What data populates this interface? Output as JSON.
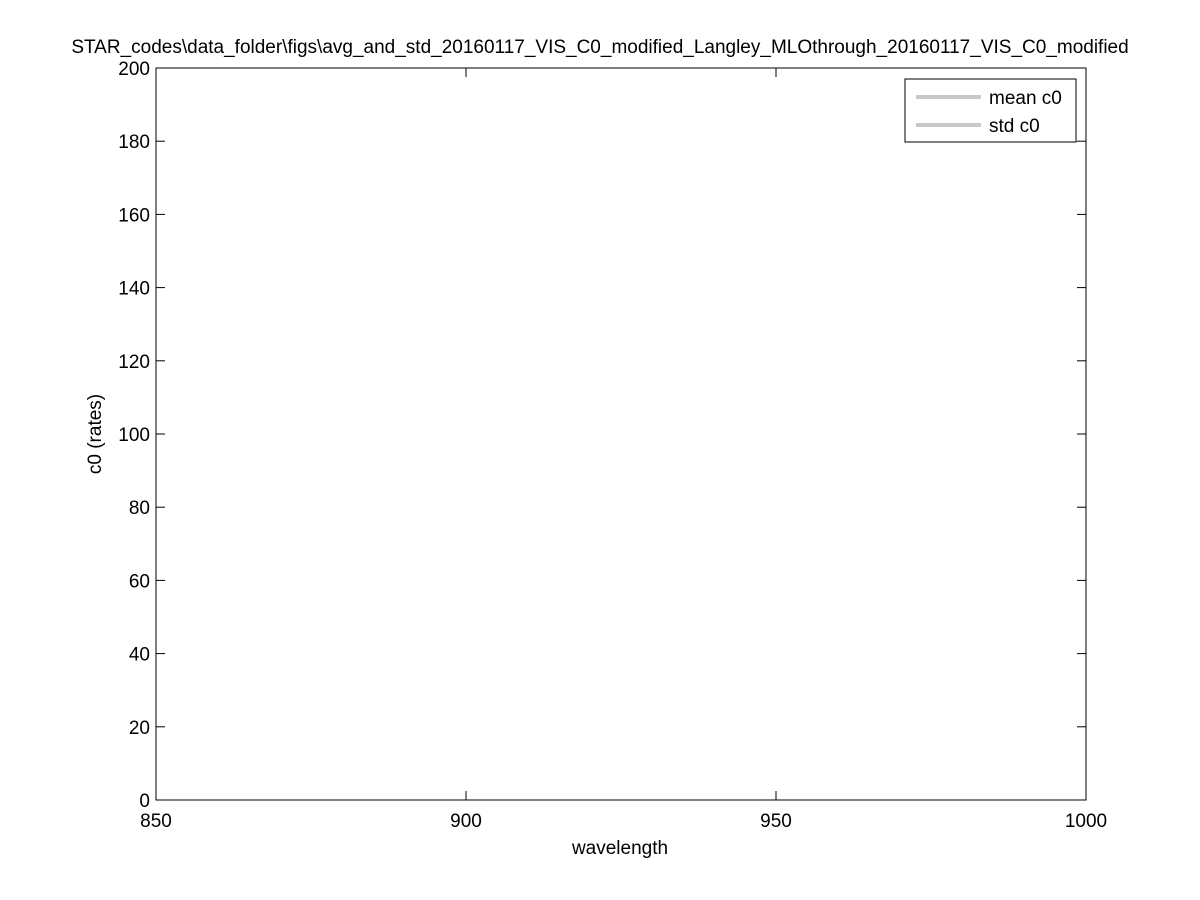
{
  "chart_data": {
    "type": "line",
    "title": "STAR_codes\\data_folder\\figs\\avg_and_std_20160117_VIS_C0_modified_Langley_MLOthrough_20160117_VIS_C0_modified",
    "xlabel": "wavelength",
    "ylabel": "c0 (rates)",
    "xlim": [
      850,
      1000
    ],
    "ylim": [
      0,
      200
    ],
    "xticks": [
      850,
      900,
      950,
      1000
    ],
    "yticks": [
      0,
      20,
      40,
      60,
      80,
      100,
      120,
      140,
      160,
      180,
      200
    ],
    "grid": false,
    "legend_position": "top-right",
    "series": [
      {
        "name": "mean c0",
        "color": "#c8c8c8",
        "x": [],
        "y": []
      },
      {
        "name": "std c0",
        "color": "#c8c8c8",
        "x": [],
        "y": []
      }
    ]
  }
}
